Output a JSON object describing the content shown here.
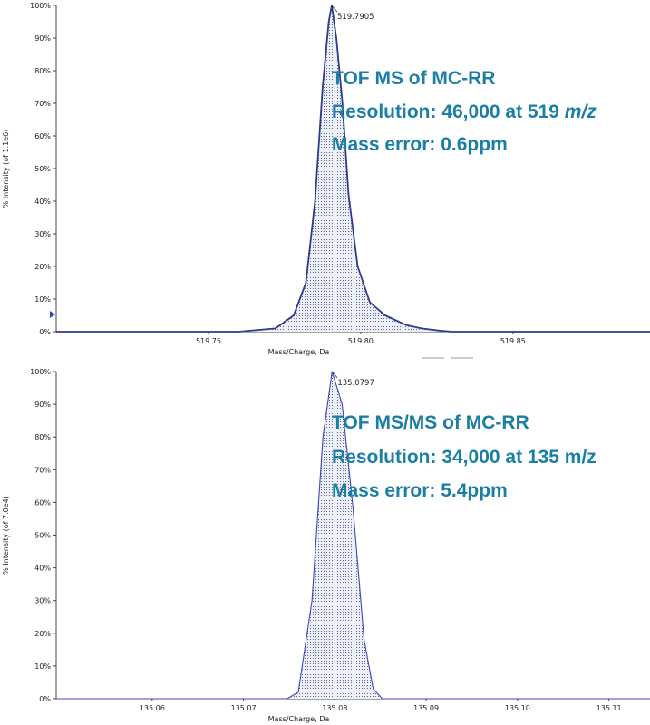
{
  "chart_data": [
    {
      "type": "line",
      "fill": "dotted",
      "xlabel": "Mass/Charge, Da",
      "ylabel": "% Intensity (of 1.1e6)",
      "xlim": [
        519.7,
        519.895
      ],
      "ylim": [
        0,
        100
      ],
      "x_ticks": [
        "519.75",
        "519.80",
        "519.85"
      ],
      "y_ticks": [
        "0%",
        "10%",
        "20%",
        "30%",
        "40%",
        "50%",
        "60%",
        "70%",
        "80%",
        "90%",
        "100%"
      ],
      "peak_label": "519.7905",
      "series": [
        {
          "x": [
            519.7,
            519.73,
            519.76,
            519.772,
            519.778,
            519.782,
            519.785,
            519.7875,
            519.7895,
            519.7905,
            519.792,
            519.794,
            519.796,
            519.799,
            519.803,
            519.808,
            519.815,
            519.82,
            519.826,
            519.83,
            519.895
          ],
          "y": [
            0,
            0,
            0,
            1,
            5,
            15,
            40,
            75,
            95,
            100,
            90,
            70,
            42,
            20,
            9,
            5,
            2,
            1,
            0.3,
            0,
            0
          ]
        }
      ],
      "annotation": {
        "line1": "TOF MS of MC-RR",
        "line2_pre": "Resolution: 46,000 at 519 ",
        "line2_italic": "m/z",
        "line3": "Mass error: 0.6ppm"
      }
    },
    {
      "type": "line",
      "fill": "dotted",
      "xlabel": "Mass/Charge, Da",
      "ylabel": "% Intensity (of 7.0e4)",
      "xlim": [
        135.0495,
        135.1145
      ],
      "ylim": [
        0,
        100
      ],
      "x_ticks": [
        "135.06",
        "135.07",
        "135.08",
        "135.09",
        "135.10",
        "135.11"
      ],
      "y_ticks": [
        "0%",
        "10%",
        "20%",
        "30%",
        "40%",
        "50%",
        "60%",
        "70%",
        "80%",
        "90%",
        "100%"
      ],
      "peak_label": "135.0797",
      "series": [
        {
          "x": [
            135.0495,
            135.072,
            135.0748,
            135.076,
            135.0775,
            135.0787,
            135.0797,
            135.0808,
            135.082,
            135.0832,
            135.0842,
            135.0852,
            135.1145
          ],
          "y": [
            0,
            0,
            0,
            2,
            30,
            80,
            100,
            90,
            58,
            18,
            3,
            0,
            0
          ]
        }
      ],
      "annotation": {
        "line1": "TOF MS/MS of MC-RR",
        "line2": "Resolution: 34,000 at 135 m/z",
        "line3": "Mass error: 5.4ppm"
      }
    }
  ]
}
